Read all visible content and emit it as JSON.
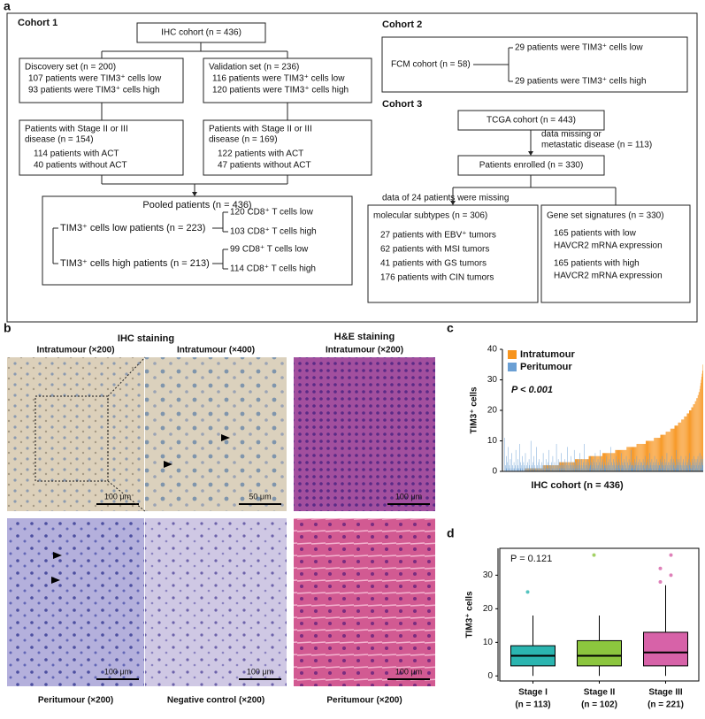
{
  "diagram": {
    "panel_label": "a",
    "cohort_labels": [
      "Cohort 1",
      "Cohort 2",
      "Cohort 3"
    ],
    "boxes": [
      {
        "lines": [
          "IHC cohort (n = 436)"
        ]
      },
      {
        "lines": [
          "Discovery set (n = 200)",
          "107 patients were TIM3⁺ cells low",
          "93 patients were TIM3⁺ cells high"
        ]
      },
      {
        "lines": [
          "Validation set (n = 236)",
          "116 patients were TIM3⁺ cells low",
          "120 patients were TIM3⁺ cells high"
        ]
      },
      {
        "lines": [
          "Patients with Stage II or III",
          "disease (n = 154)",
          "114 patients with ACT",
          "40 patients without ACT"
        ]
      },
      {
        "lines": [
          "Patients with Stage II or III",
          "disease (n = 169)",
          "122 patients with ACT",
          "47 patients without ACT"
        ]
      },
      {
        "lines": [
          "Pooled patients (n = 436)",
          "TIM3⁺ cells low patients (n = 223)",
          "120 CD8⁺ T cells low",
          "103 CD8⁺ T cells high",
          "TIM3⁺ cells high patients (n = 213)",
          "99 CD8⁺ T cells low",
          "114 CD8⁺ T cells high"
        ]
      },
      {
        "lines": [
          "FCM cohort (n = 58)",
          "29 patients were TIM3⁺ cells low",
          "29 patients were TIM3⁺ cells high"
        ]
      },
      {
        "lines": [
          "TCGA cohort (n = 443)"
        ]
      },
      {
        "lines": [
          "Patients enrolled (n = 330)"
        ]
      },
      {
        "lines": [
          "molecular subtypes (n = 306)",
          "27 patients with EBV⁺ tumors",
          "62 patients with MSI tumors",
          "41 patients with GS tumors",
          "176 patients with CIN tumors"
        ]
      },
      {
        "lines": [
          "Gene set signatures (n = 330)",
          "165 patients with low",
          "HAVCR2 mRNA expression",
          "165 patients with high",
          "HAVCR2 mRNA expression"
        ]
      }
    ],
    "notes": [
      "data missing or",
      "metastatic disease (n = 113)",
      "data of 24 patients were missing"
    ]
  },
  "figure_b": {
    "panel_label": "b",
    "headers": [
      "IHC staining",
      "H&E staining"
    ],
    "panels": [
      {
        "label": "Intratumour (×200)",
        "scale": "100 μm"
      },
      {
        "label": "Intratumour (×400)",
        "scale": "50 μm"
      },
      {
        "label": "Intratumour (×200)",
        "scale": "100 μm"
      },
      {
        "label": "Peritumour (×200)",
        "scale": "100 μm"
      },
      {
        "label": "Negative control (×200)",
        "scale": "100 μm"
      },
      {
        "label": "Peritumour (×200)",
        "scale": "100 μm"
      }
    ]
  },
  "chart_data": [
    {
      "panel_label": "c",
      "type": "bar",
      "mode": "overlay",
      "y_label": "TIM3⁺ cells",
      "x_label": "IHC cohort (n = 436)",
      "annotation": "P < 0.001",
      "ylim": [
        0,
        40
      ],
      "yticks": [
        0,
        10,
        20,
        30,
        40
      ],
      "legend": "upper left",
      "series": [
        {
          "name": "Intratumour",
          "color": "#f7941d",
          "values": [
            0,
            0,
            0,
            0,
            0,
            0,
            0,
            0,
            0,
            0,
            0,
            0,
            0,
            0,
            0,
            0,
            0,
            0,
            0,
            0,
            0,
            0,
            0,
            0,
            0,
            0,
            0,
            0,
            0,
            0,
            0,
            0,
            0,
            0,
            0,
            0,
            0,
            0,
            0,
            0,
            0,
            0,
            0,
            0,
            0,
            1,
            1,
            1,
            1,
            1,
            1,
            1,
            1,
            1,
            1,
            1,
            1,
            1,
            1,
            1,
            1,
            1,
            1,
            1,
            1,
            1,
            1,
            1,
            1,
            1,
            1,
            1,
            1,
            1,
            1,
            1,
            1,
            1,
            1,
            1,
            1,
            1,
            1,
            1,
            1,
            2,
            2,
            2,
            2,
            2,
            2,
            2,
            2,
            2,
            2,
            2,
            2,
            2,
            2,
            2,
            2,
            2,
            2,
            2,
            2,
            2,
            2,
            2,
            2,
            2,
            2,
            2,
            2,
            2,
            2,
            2,
            2,
            2,
            2,
            2,
            3,
            3,
            3,
            3,
            3,
            3,
            3,
            3,
            3,
            3,
            3,
            3,
            3,
            3,
            3,
            3,
            3,
            3,
            3,
            3,
            3,
            3,
            3,
            3,
            3,
            3,
            3,
            3,
            3,
            3,
            3,
            3,
            3,
            3,
            3,
            4,
            4,
            4,
            4,
            4,
            4,
            4,
            4,
            4,
            4,
            4,
            4,
            4,
            4,
            4,
            4,
            4,
            4,
            4,
            4,
            4,
            4,
            4,
            4,
            4,
            4,
            4,
            4,
            4,
            4,
            5,
            5,
            5,
            5,
            5,
            5,
            5,
            5,
            5,
            5,
            5,
            5,
            5,
            5,
            5,
            5,
            5,
            5,
            5,
            5,
            5,
            5,
            5,
            5,
            5,
            5,
            5,
            5,
            5,
            5,
            6,
            6,
            6,
            6,
            6,
            6,
            6,
            6,
            6,
            6,
            6,
            6,
            6,
            6,
            6,
            6,
            6,
            6,
            6,
            6,
            6,
            6,
            6,
            6,
            6,
            6,
            6,
            6,
            7,
            7,
            7,
            7,
            7,
            7,
            7,
            7,
            7,
            7,
            7,
            7,
            7,
            7,
            7,
            7,
            7,
            7,
            7,
            7,
            7,
            7,
            7,
            7,
            7,
            8,
            8,
            8,
            8,
            8,
            8,
            8,
            8,
            8,
            8,
            8,
            8,
            8,
            8,
            8,
            8,
            8,
            8,
            8,
            8,
            8,
            8,
            9,
            9,
            9,
            9,
            9,
            9,
            9,
            9,
            9,
            9,
            9,
            9,
            9,
            9,
            9,
            9,
            9,
            9,
            9,
            9,
            10,
            10,
            10,
            10,
            10,
            10,
            10,
            10,
            10,
            10,
            10,
            10,
            10,
            10,
            10,
            10,
            10,
            10,
            11,
            11,
            11,
            11,
            11,
            11,
            11,
            11,
            11,
            11,
            11,
            11,
            11,
            11,
            12,
            12,
            12,
            12,
            12,
            12,
            12,
            12,
            12,
            12,
            12,
            12,
            13,
            13,
            13,
            13,
            13,
            13,
            13,
            13,
            13,
            13,
            14,
            14,
            14,
            14,
            14,
            14,
            14,
            14,
            14,
            15,
            15,
            15,
            15,
            15,
            15,
            15,
            15,
            16,
            16,
            16,
            16,
            16,
            16,
            16,
            17,
            17,
            17,
            17,
            17,
            17,
            18,
            18,
            18,
            18,
            18,
            18,
            19,
            19,
            19,
            19,
            19,
            20,
            20,
            20,
            20,
            20,
            21,
            21,
            21,
            21,
            22,
            22,
            22,
            22,
            23,
            23,
            23,
            24,
            24,
            24,
            25,
            25,
            26,
            26,
            27,
            28,
            29,
            30,
            31,
            32,
            33,
            35
          ]
        },
        {
          "name": "Peritumour",
          "color": "#6a9fd4",
          "values": [
            0,
            11,
            2,
            0,
            5,
            1,
            0,
            3,
            8,
            0,
            1,
            2,
            0,
            4,
            0,
            1,
            6,
            0,
            2,
            1,
            0,
            3,
            1,
            0,
            2,
            7,
            0,
            1,
            0,
            4,
            2,
            0,
            1,
            9,
            0,
            3,
            1,
            0,
            2,
            5,
            1,
            0,
            3,
            0,
            2,
            1,
            6,
            0,
            1,
            2,
            0,
            3,
            1,
            0,
            4,
            2,
            0,
            1,
            10,
            0,
            2,
            1,
            0,
            3,
            5,
            0,
            1,
            2,
            0,
            1,
            8,
            0,
            2,
            1,
            0,
            3,
            4,
            0,
            1,
            2,
            0,
            1,
            3,
            0,
            2,
            6,
            1,
            0,
            2,
            1,
            0,
            4,
            2,
            1,
            0,
            3,
            1,
            7,
            0,
            2,
            1,
            0,
            2,
            3,
            0,
            1,
            5,
            2,
            0,
            1,
            3,
            0,
            2,
            1,
            9,
            0,
            2,
            1,
            4,
            0,
            3,
            1,
            0,
            2,
            1,
            6,
            0,
            2,
            3,
            1,
            0,
            2,
            4,
            1,
            0,
            3,
            2,
            0,
            8,
            1,
            2,
            0,
            1,
            3,
            2,
            0,
            5,
            1,
            2,
            0,
            3,
            1,
            2,
            7,
            0,
            1,
            3,
            2,
            0,
            4,
            1,
            2,
            0,
            3,
            1,
            6,
            2,
            0,
            1,
            4,
            2,
            1,
            0,
            3,
            2,
            9,
            1,
            0,
            2,
            3,
            0,
            2,
            4,
            1,
            3,
            0,
            2,
            1,
            5,
            2,
            0,
            3,
            1,
            2,
            4,
            0,
            1,
            3,
            2,
            6,
            1,
            0,
            3,
            2,
            1,
            4,
            2,
            0,
            3,
            1,
            7,
            2,
            1,
            0,
            3,
            2,
            4,
            1,
            0,
            2,
            3,
            1,
            2,
            0,
            5,
            2,
            1,
            3,
            0,
            2,
            4,
            1,
            2,
            8,
            0,
            3,
            1,
            2,
            0,
            4,
            2,
            3,
            1,
            0,
            2,
            5,
            1,
            3,
            2,
            0,
            4,
            2,
            1,
            3,
            0,
            2,
            6,
            1,
            2,
            3,
            1,
            2,
            4,
            0,
            3,
            1,
            2,
            5,
            1,
            0,
            3,
            2,
            1,
            4,
            2,
            0,
            3,
            1,
            7,
            2,
            2,
            1,
            3,
            0,
            2,
            4,
            1,
            2,
            3,
            0,
            5,
            2,
            1,
            3,
            2,
            1,
            4,
            0,
            2,
            3,
            1,
            3,
            2,
            0,
            4,
            2,
            1,
            3,
            5,
            0,
            2,
            1,
            3,
            2,
            0,
            4,
            1,
            2,
            6,
            1,
            3,
            2,
            1,
            4,
            0,
            2,
            3,
            1,
            2,
            5,
            0,
            3,
            2,
            1,
            4,
            2,
            0,
            3,
            1,
            2,
            2,
            4,
            1,
            3,
            0,
            2,
            5,
            1,
            3,
            2,
            0,
            4,
            1,
            2,
            3,
            0,
            6,
            2,
            1,
            3,
            1,
            2,
            3,
            0,
            4,
            2,
            1,
            5,
            3,
            0,
            2,
            4,
            1,
            3,
            2,
            0,
            7,
            1,
            2,
            4,
            3,
            1,
            2,
            4,
            0,
            3,
            2,
            5,
            1,
            2,
            0,
            3,
            4,
            1,
            2,
            0,
            3,
            5,
            1,
            2,
            2,
            3,
            1,
            0,
            4,
            2,
            6,
            1,
            3,
            2,
            0,
            4,
            1,
            2,
            3,
            5,
            0,
            2,
            4,
            1,
            3,
            2,
            4,
            1,
            5,
            2,
            0,
            3,
            6,
            2,
            4,
            1,
            3,
            5,
            2,
            4
          ]
        }
      ]
    },
    {
      "panel_label": "d",
      "type": "box",
      "y_label": "TIM3⁺ cells",
      "annotation": "P = 0.121",
      "categories": [
        "Stage I",
        "Stage II",
        "Stage III"
      ],
      "category_counts": [
        "(n = 113)",
        "(n = 102)",
        "(n = 221)"
      ],
      "ylim": [
        -1.5,
        38
      ],
      "yticks": [
        0,
        10,
        20,
        30
      ],
      "boxes": [
        {
          "color": "#2bb5b0",
          "whisker_low": 0,
          "q1": 3,
          "median": 6,
          "q3": 9,
          "whisker_high": 18,
          "outliers": [
            25
          ]
        },
        {
          "color": "#8cc63e",
          "whisker_low": 0,
          "q1": 3,
          "median": 6,
          "q3": 10.5,
          "whisker_high": 18,
          "outliers": [
            36
          ]
        },
        {
          "color": "#d762a8",
          "whisker_low": 0,
          "q1": 3,
          "median": 7,
          "q3": 13,
          "whisker_high": 27,
          "outliers": [
            28,
            30,
            32,
            36
          ]
        }
      ]
    }
  ]
}
